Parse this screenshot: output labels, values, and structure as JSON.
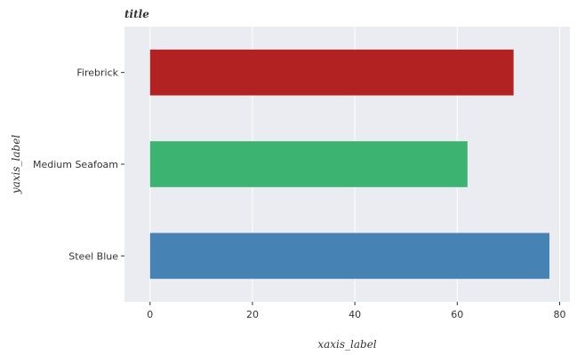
{
  "chart_data": {
    "type": "bar",
    "orientation": "horizontal",
    "title": "title",
    "xlabel": "xaxis_label",
    "ylabel": "yaxis_label",
    "categories": [
      "Steel Blue",
      "Medium Seafoam",
      "Firebrick"
    ],
    "values": [
      78,
      62,
      71
    ],
    "colors": [
      "#4682b4",
      "#3cb371",
      "#b22222"
    ],
    "xlim": [
      -5,
      82
    ],
    "xticks": [
      0,
      20,
      40,
      60,
      80
    ],
    "xtick_labels": [
      "0",
      "20",
      "40",
      "60",
      "80"
    ],
    "grid": true,
    "background": "#ebebf2"
  }
}
